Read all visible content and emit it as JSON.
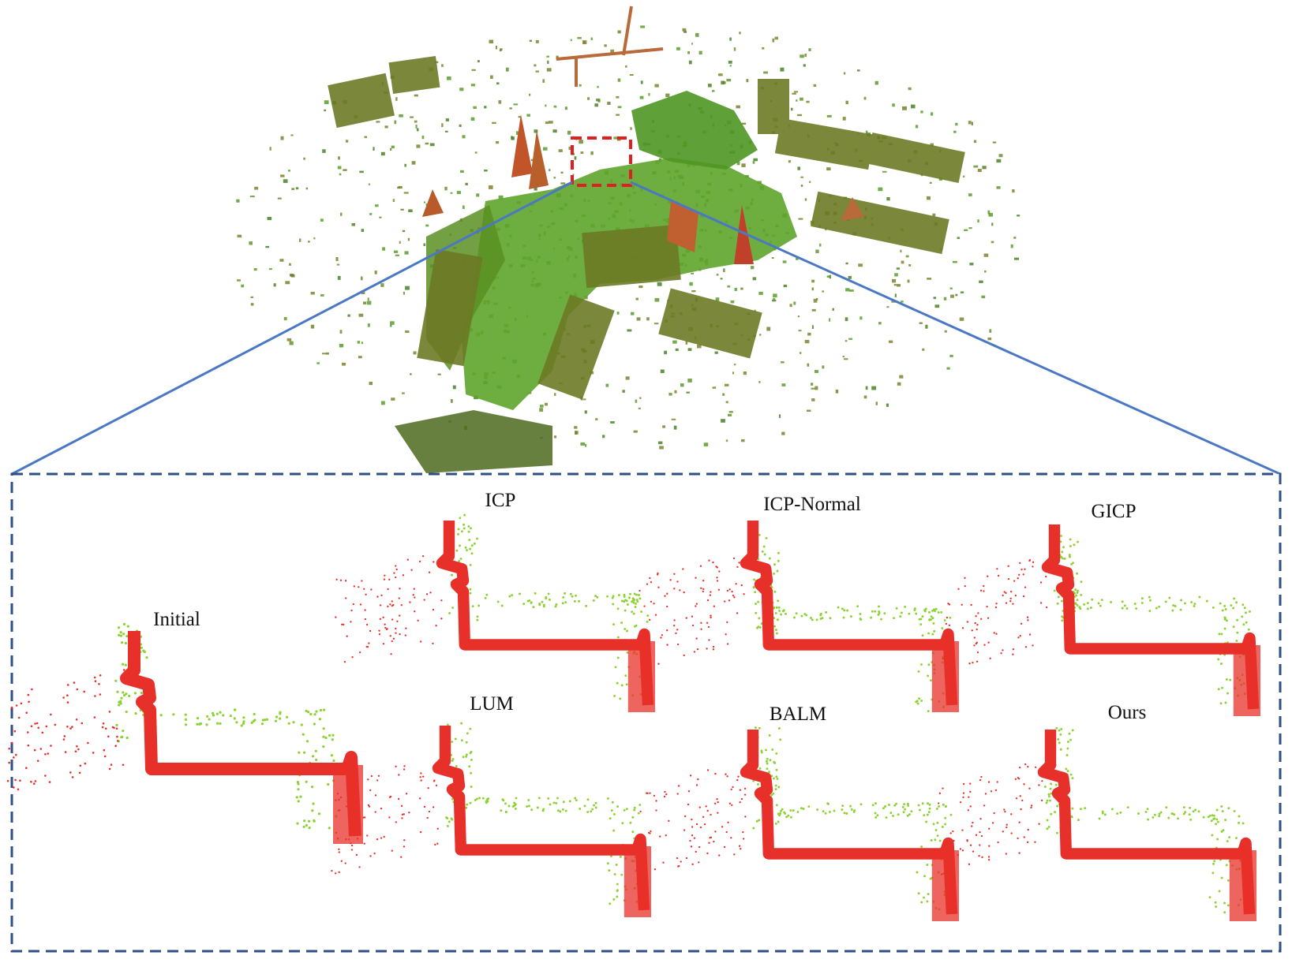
{
  "panels": [
    {
      "id": "initial",
      "label": "Initial"
    },
    {
      "id": "icp",
      "label": "ICP"
    },
    {
      "id": "icp-normal",
      "label": "ICP-Normal"
    },
    {
      "id": "gicp",
      "label": "GICP"
    },
    {
      "id": "lum",
      "label": "LUM"
    },
    {
      "id": "balm",
      "label": "BALM"
    },
    {
      "id": "ours",
      "label": "Ours"
    }
  ],
  "colors": {
    "zoom_box_border": "#2f4f86",
    "connector_line": "#4a78c5",
    "highlight_box": "#e02020",
    "source_points": "#e8302a",
    "target_points": "#8cd232",
    "map_green": "#4f9a22",
    "map_dark": "#5a6a1a",
    "map_red": "#b85a2a"
  }
}
